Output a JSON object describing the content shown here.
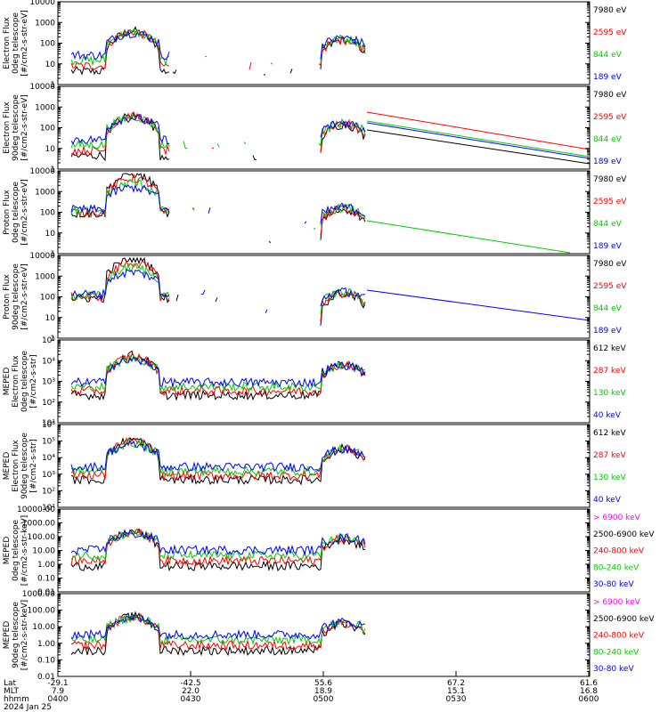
{
  "chart_data": {
    "type": "line",
    "x_axis": {
      "rows": [
        {
          "label": "Lat",
          "values": [
            "-29.1",
            "-42.5",
            "55.6",
            "67.2",
            "61.6"
          ]
        },
        {
          "label": "MLT",
          "values": [
            "7.9",
            "22.0",
            "18.9",
            "15.1",
            "16.8"
          ]
        },
        {
          "label": "hhmm",
          "values": [
            "0400",
            "0430",
            "0500",
            "0530",
            "0600"
          ]
        }
      ],
      "date": "2024 Jan 25",
      "range": [
        "0400",
        "0600"
      ]
    },
    "panels": [
      {
        "ylabel": [
          "Electron Flux",
          "0deg telescope",
          "[#/cm2-s-str-eV]"
        ],
        "scale": "log",
        "ticks": [
          "1",
          "10",
          "100",
          "1000",
          "10000"
        ],
        "legend": [
          {
            "label": "7980 eV",
            "color": "#000000"
          },
          {
            "label": "2595 eV",
            "color": "#ff0000"
          },
          {
            "label": "844 eV",
            "color": "#00cc00"
          },
          {
            "label": "189 eV",
            "color": "#0000ff"
          }
        ]
      },
      {
        "ylabel": [
          "Electron Flux",
          "90deg telescope",
          "[#/cm2-s-str-eV]"
        ],
        "scale": "log",
        "ticks": [
          "1",
          "10",
          "100",
          "1000",
          "10000"
        ],
        "legend": [
          {
            "label": "7980 eV",
            "color": "#000000"
          },
          {
            "label": "2595 eV",
            "color": "#ff0000"
          },
          {
            "label": "844 eV",
            "color": "#00cc00"
          },
          {
            "label": "189 eV",
            "color": "#0000ff"
          }
        ]
      },
      {
        "ylabel": [
          "Proton Flux",
          "0deg telescope",
          "[#/cm2-s-str-eV]"
        ],
        "scale": "log",
        "ticks": [
          "1",
          "10",
          "100",
          "1000",
          "10000"
        ],
        "legend": [
          {
            "label": "7980 eV",
            "color": "#000000"
          },
          {
            "label": "2595 eV",
            "color": "#ff0000"
          },
          {
            "label": "844 eV",
            "color": "#00cc00"
          },
          {
            "label": "189 eV",
            "color": "#0000ff"
          }
        ]
      },
      {
        "ylabel": [
          "Proton Flux",
          "90deg telescope",
          "[#/cm2-s-str-eV]"
        ],
        "scale": "log",
        "ticks": [
          "1",
          "10",
          "100",
          "1000",
          "10000"
        ],
        "legend": [
          {
            "label": "7980 eV",
            "color": "#000000"
          },
          {
            "label": "2595 eV",
            "color": "#ff0000"
          },
          {
            "label": "844 eV",
            "color": "#00cc00"
          },
          {
            "label": "189 eV",
            "color": "#0000ff"
          }
        ]
      },
      {
        "ylabel": [
          "MEPED",
          "Electron Flux",
          "0deg telescope",
          "[#/cm2-s-str]"
        ],
        "scale": "log",
        "ticks": [
          "10¹",
          "10²",
          "10³",
          "10⁴",
          "10⁵"
        ],
        "legend": [
          {
            "label": "612 keV",
            "color": "#000000"
          },
          {
            "label": "287 keV",
            "color": "#ff0000"
          },
          {
            "label": "130 keV",
            "color": "#00cc00"
          },
          {
            "label": "40 keV",
            "color": "#0000ff"
          }
        ]
      },
      {
        "ylabel": [
          "MEPED",
          "Electron Flux",
          "90deg telescope",
          "[#/cm2-s-str]"
        ],
        "scale": "log",
        "ticks": [
          "10¹",
          "10²",
          "10³",
          "10⁴",
          "10⁵",
          "10⁶"
        ],
        "legend": [
          {
            "label": "612 keV",
            "color": "#000000"
          },
          {
            "label": "287 keV",
            "color": "#ff0000"
          },
          {
            "label": "130 keV",
            "color": "#00cc00"
          },
          {
            "label": "40 keV",
            "color": "#0000ff"
          }
        ]
      },
      {
        "ylabel": [
          "MEPED",
          "0deg telescope",
          "[#/cm2-s-str-keV]"
        ],
        "scale": "log",
        "ticks": [
          "0.01",
          "0.10",
          "1.00",
          "10.00",
          "100.00",
          "1000.00",
          "10000.00"
        ],
        "legend": [
          {
            "label": "> 6900 keV",
            "color": "#ff00ff"
          },
          {
            "label": "2500-6900 keV",
            "color": "#000000"
          },
          {
            "label": "240-800 keV",
            "color": "#ff0000"
          },
          {
            "label": "80-240 keV",
            "color": "#00cc00"
          },
          {
            "label": "30-80 keV",
            "color": "#0000ff"
          }
        ]
      },
      {
        "ylabel": [
          "MEPED",
          "90deg telescope",
          "[#/cm2-s-str-keV]"
        ],
        "scale": "log",
        "ticks": [
          "0.01",
          "0.10",
          "1.00",
          "10.00",
          "100.00",
          "1000.00"
        ],
        "legend": [
          {
            "label": "> 6900 keV",
            "color": "#ff00ff"
          },
          {
            "label": "2500-6900 keV",
            "color": "#000000"
          },
          {
            "label": "240-800 keV",
            "color": "#ff0000"
          },
          {
            "label": "80-240 keV",
            "color": "#00cc00"
          },
          {
            "label": "30-80 keV",
            "color": "#0000ff"
          }
        ]
      }
    ]
  }
}
